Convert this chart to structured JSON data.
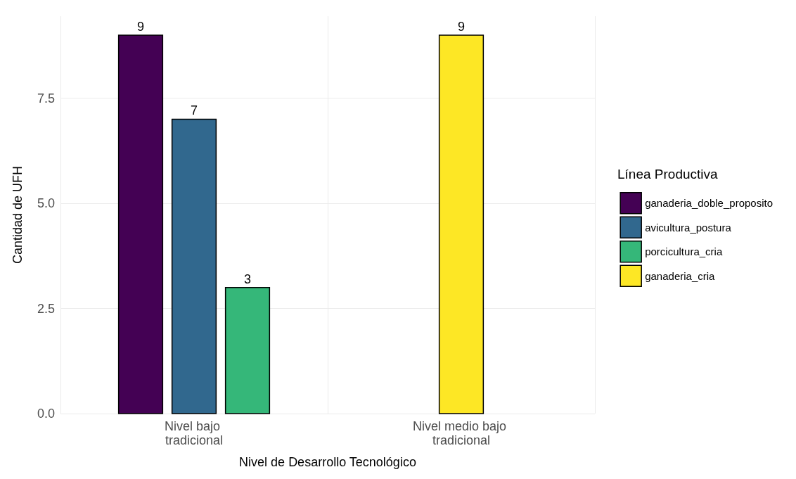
{
  "chart_data": {
    "type": "bar",
    "xlabel": "Nivel de Desarrollo Tecnológico",
    "ylabel": "Cantidad de UFH",
    "legend_title": "Línea Productiva",
    "categories": [
      "Nivel bajo tradicional",
      "Nivel medio bajo tradicional"
    ],
    "series": [
      {
        "name": "ganaderia_doble_proposito",
        "color": "#440154",
        "values": [
          9,
          null
        ]
      },
      {
        "name": "avicultura_postura",
        "color": "#31688e",
        "values": [
          7,
          null
        ]
      },
      {
        "name": "porcicultura_cria",
        "color": "#35b779",
        "values": [
          3,
          null
        ]
      },
      {
        "name": "ganaderia_cria",
        "color": "#fde725",
        "values": [
          null,
          9
        ]
      }
    ],
    "ylim": [
      0,
      9.45
    ],
    "yticks": [
      {
        "value": 0,
        "label": "0.0"
      },
      {
        "value": 2.5,
        "label": "2.5"
      },
      {
        "value": 5,
        "label": "5.0"
      },
      {
        "value": 7.5,
        "label": "7.5"
      }
    ],
    "grid": true,
    "legend": "right",
    "data_labels": true
  }
}
